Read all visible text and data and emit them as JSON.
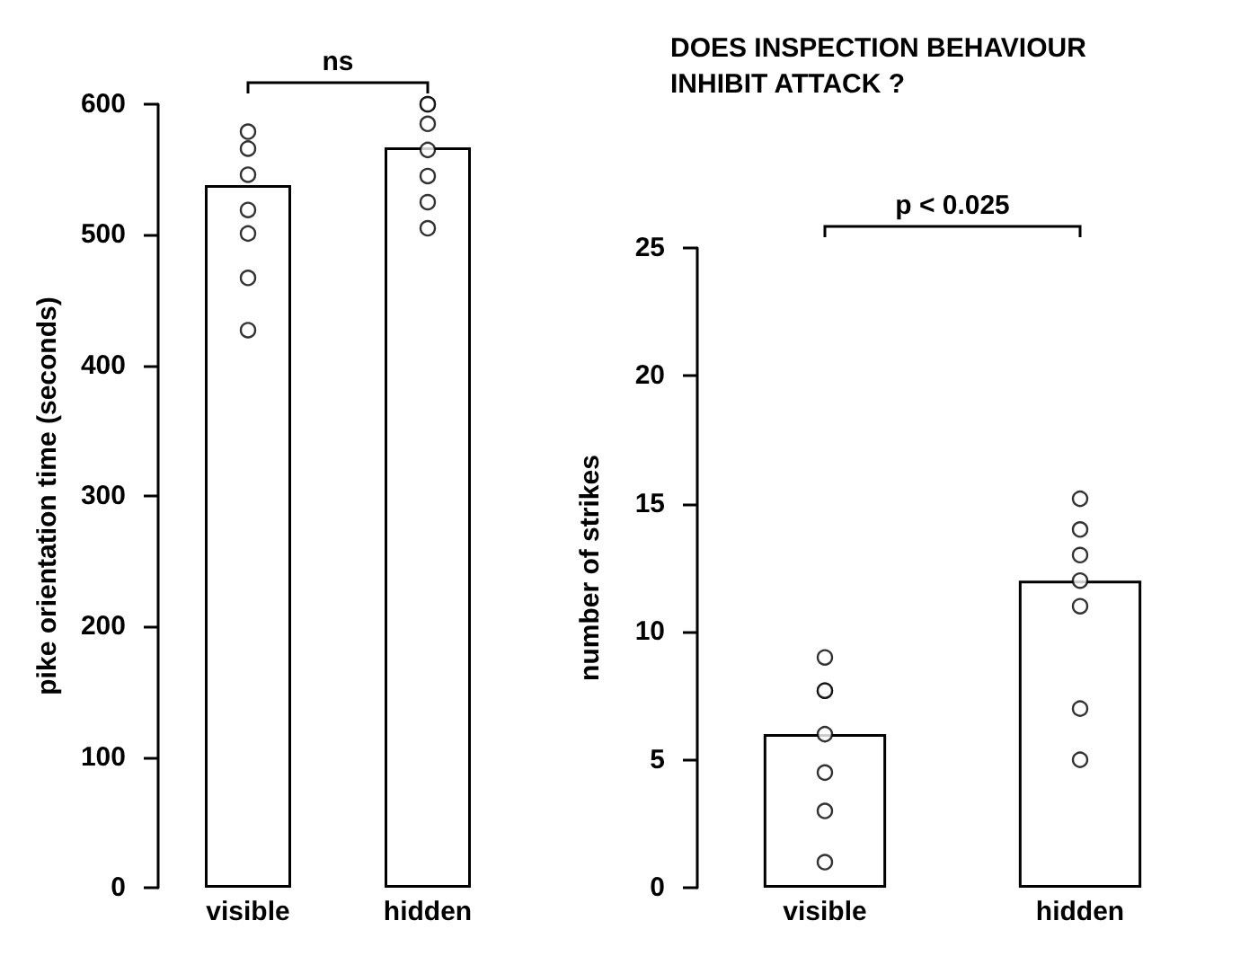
{
  "chart_data": [
    {
      "type": "bar",
      "categories": [
        "visible",
        "hidden"
      ],
      "ylabel": "pike orientation time (seconds)",
      "ylim": [
        0,
        600
      ],
      "yticks": [
        0,
        100,
        200,
        300,
        400,
        500,
        600
      ],
      "grid": false,
      "annotations": [
        "ns"
      ],
      "series": [
        {
          "color": "#ffffff",
          "values": [
            538,
            567
          ]
        },
        {
          "type": "scatter",
          "color": "#000000",
          "marker": "circle",
          "x": [
            "visible",
            "visible",
            "visible",
            "visible",
            "visible",
            "visible",
            "visible",
            "hidden",
            "hidden",
            "hidden",
            "hidden",
            "hidden",
            "hidden",
            "hidden"
          ],
          "values": [
            579,
            566,
            546,
            519,
            501,
            467,
            427,
            600,
            600,
            585,
            565,
            545,
            525,
            505
          ]
        }
      ]
    },
    {
      "type": "bar",
      "title": "DOES INSPECTION BEHAVIOUR INHIBIT ATTACK ?",
      "categories": [
        "visible",
        "hidden"
      ],
      "ylabel": "number of strikes",
      "ylim": [
        0,
        25
      ],
      "yticks": [
        0,
        5,
        10,
        15,
        20,
        25
      ],
      "grid": false,
      "annotations": [
        "p < 0.025"
      ],
      "series": [
        {
          "color": "#ffffff",
          "values": [
            6,
            12
          ]
        },
        {
          "type": "scatter",
          "color": "#000000",
          "marker": "circle",
          "x": [
            "visible",
            "visible",
            "visible",
            "visible",
            "visible",
            "visible",
            "visible",
            "hidden",
            "hidden",
            "hidden",
            "hidden",
            "hidden",
            "hidden",
            "hidden"
          ],
          "values": [
            9,
            7.7,
            7.7,
            6,
            4.5,
            3,
            1,
            15.2,
            14,
            13,
            12,
            11,
            7,
            5
          ]
        }
      ]
    }
  ]
}
